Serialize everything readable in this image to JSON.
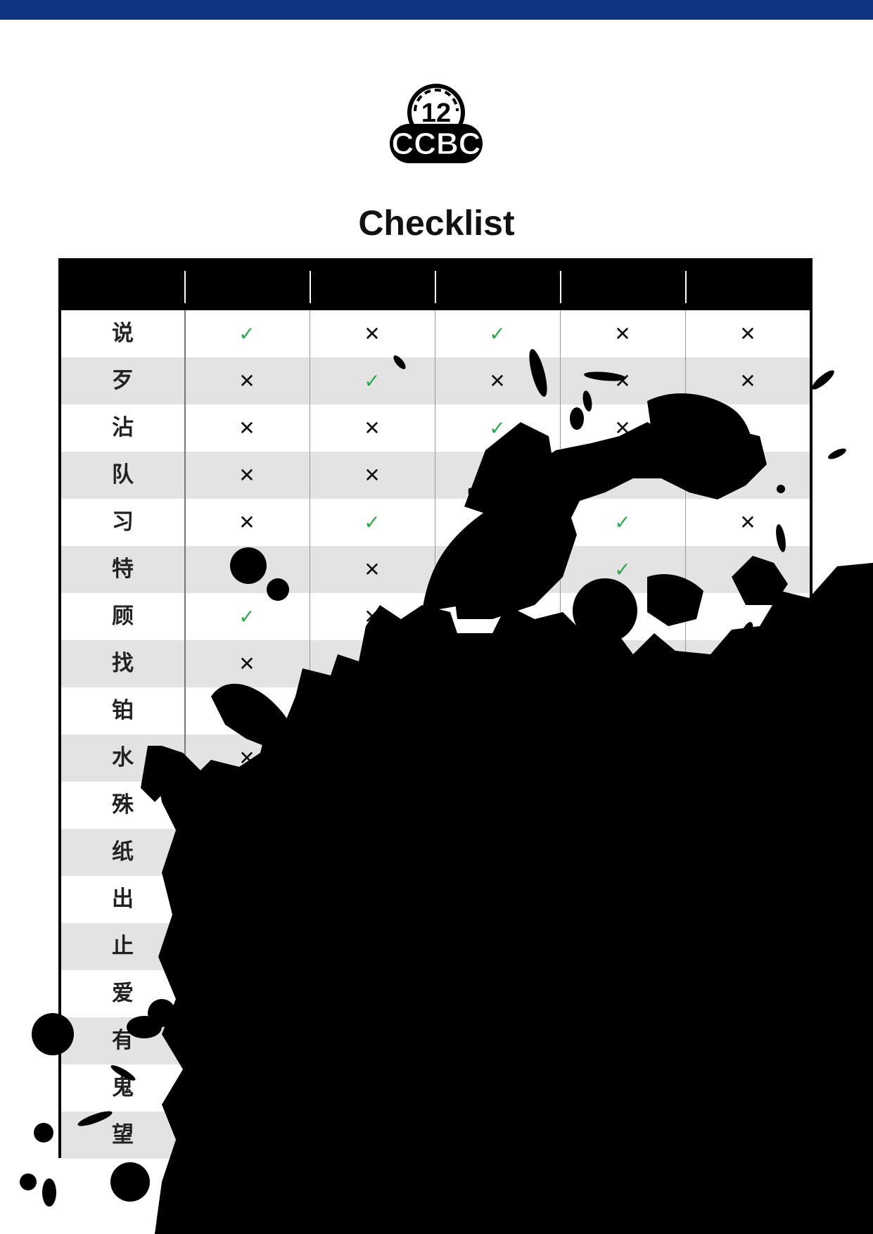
{
  "header": {
    "bar_color": "#0e3380"
  },
  "logo": {
    "top_text": "12",
    "bottom_text": "CCBC"
  },
  "title": "Checklist",
  "table": {
    "columns": [
      "",
      "",
      "",
      "",
      ""
    ],
    "yes_symbol": "✓",
    "no_symbol": "✕",
    "yes_color": "#2fa84f",
    "rows": [
      {
        "label": "说",
        "marks": [
          "✓",
          "✕",
          "✓",
          "✕",
          "✕"
        ]
      },
      {
        "label": "歹",
        "marks": [
          "✕",
          "✓",
          "✕",
          "✕",
          "✕"
        ]
      },
      {
        "label": "沾",
        "marks": [
          "✕",
          "✕",
          "✓",
          "✕",
          ""
        ]
      },
      {
        "label": "队",
        "marks": [
          "✕",
          "✕",
          "✕",
          "",
          ""
        ]
      },
      {
        "label": "习",
        "marks": [
          "✕",
          "✓",
          "",
          "✓",
          "✕"
        ]
      },
      {
        "label": "特",
        "marks": [
          "",
          "✕",
          "",
          "✓",
          "✓"
        ]
      },
      {
        "label": "顾",
        "marks": [
          "✓",
          "✕",
          "",
          "",
          ""
        ]
      },
      {
        "label": "找",
        "marks": [
          "✕",
          "✕",
          "✓",
          "✕",
          "✓"
        ]
      },
      {
        "label": "铂",
        "marks": [
          "",
          "",
          "",
          "",
          ""
        ]
      },
      {
        "label": "水",
        "marks": [
          "✕",
          "✓",
          "✕",
          "",
          "✓"
        ]
      },
      {
        "label": "殊",
        "marks": [
          "✓",
          "✕",
          "✕",
          "",
          "✓"
        ]
      },
      {
        "label": "纸",
        "marks": [
          "",
          "",
          "",
          "",
          ""
        ]
      },
      {
        "label": "出",
        "marks": [
          "",
          "",
          "",
          "",
          ""
        ]
      },
      {
        "label": "止",
        "marks": [
          "",
          "",
          "",
          "",
          ""
        ]
      },
      {
        "label": "爱",
        "marks": [
          "",
          "",
          "",
          "",
          ""
        ]
      },
      {
        "label": "有",
        "marks": [
          "",
          "",
          "",
          "",
          ""
        ]
      },
      {
        "label": "鬼",
        "marks": [
          "",
          "",
          "",
          "",
          ""
        ]
      },
      {
        "label": "望",
        "marks": [
          "",
          "",
          "",
          "",
          ""
        ]
      }
    ]
  }
}
